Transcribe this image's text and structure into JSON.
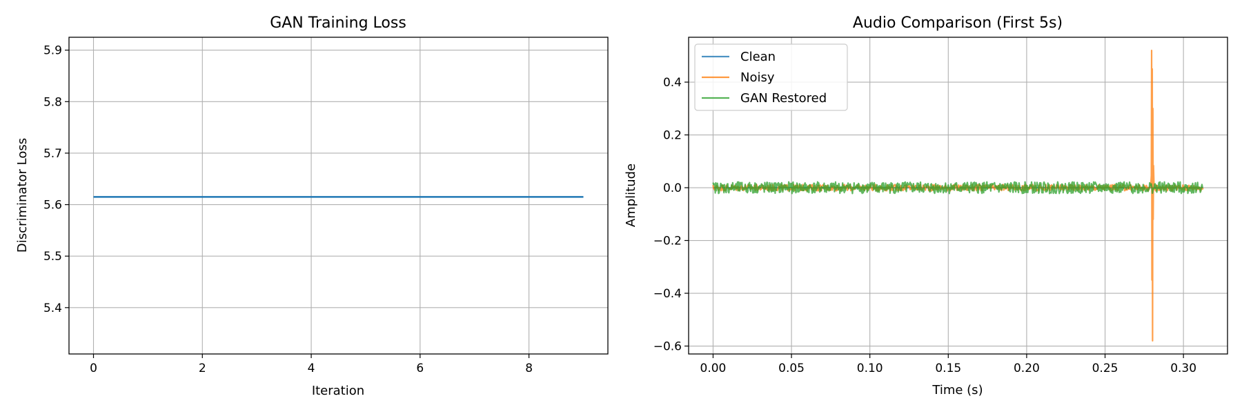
{
  "colors": {
    "clean": "#1f77b4",
    "noisy": "#ff7f0e",
    "restored": "#2ca02c",
    "grid": "#b0b0b0",
    "axis": "#000000"
  },
  "chart_data": [
    {
      "type": "line",
      "title": "GAN Training Loss",
      "xlabel": "Iteration",
      "ylabel": "Discriminator Loss",
      "xlim": [
        -0.45,
        9.45
      ],
      "ylim": [
        5.31,
        5.925
      ],
      "grid": true,
      "xticks": [
        0,
        2,
        4,
        6,
        8
      ],
      "yticks": [
        5.4,
        5.5,
        5.6,
        5.7,
        5.8,
        5.9
      ],
      "xtick_labels": [
        "0",
        "2",
        "4",
        "6",
        "8"
      ],
      "ytick_labels": [
        "5.4",
        "5.5",
        "5.6",
        "5.7",
        "5.8",
        "5.9"
      ],
      "series": [
        {
          "color_key": "clean",
          "x": [
            0,
            1,
            2,
            3,
            4,
            5,
            6,
            7,
            8,
            9
          ],
          "values": [
            5.615,
            5.615,
            5.615,
            5.615,
            5.615,
            5.615,
            5.615,
            5.615,
            5.615,
            5.615
          ]
        }
      ]
    },
    {
      "type": "line",
      "title": "Audio Comparison (First 5s)",
      "xlabel": "Time (s)",
      "ylabel": "Amplitude",
      "xlim": [
        -0.0156,
        0.3281
      ],
      "ylim": [
        -0.63,
        0.57
      ],
      "grid": true,
      "legend": "upper-left",
      "xticks": [
        0.0,
        0.05,
        0.1,
        0.15,
        0.2,
        0.25,
        0.3
      ],
      "yticks": [
        -0.6,
        -0.4,
        -0.2,
        0.0,
        0.2,
        0.4
      ],
      "xtick_labels": [
        "0.00",
        "0.05",
        "0.10",
        "0.15",
        "0.20",
        "0.25",
        "0.30"
      ],
      "ytick_labels": [
        "−0.6",
        "−0.4",
        "−0.2",
        "0.0",
        "0.2",
        "0.4"
      ],
      "series": [
        {
          "name": "Clean",
          "color_key": "clean",
          "x": [
            0.0,
            0.3125
          ],
          "values": [
            0.0,
            0.0
          ]
        },
        {
          "name": "Noisy",
          "color_key": "noisy",
          "noise_amplitude": 0.012,
          "x": [
            0.0,
            0.2795,
            0.2797,
            0.2799,
            0.2801,
            0.2803,
            0.2805,
            0.2807,
            0.2809,
            0.2811,
            0.2813,
            0.2815,
            0.2817,
            0.3125
          ],
          "values": [
            0.0,
            0.0,
            0.52,
            -0.35,
            0.45,
            -0.58,
            0.3,
            -0.12,
            0.08,
            -0.05,
            0.03,
            -0.02,
            0.0,
            0.0
          ]
        },
        {
          "name": "GAN Restored",
          "color_key": "restored",
          "noise_amplitude": 0.022,
          "x": [
            0.0,
            0.3125
          ],
          "values": [
            0.0,
            0.0
          ]
        }
      ]
    }
  ]
}
